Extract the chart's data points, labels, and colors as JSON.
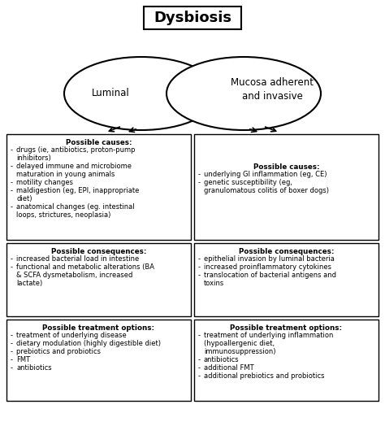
{
  "title": "Dysbiosis",
  "ellipse_left_label": "Luminal",
  "ellipse_right_label": "Mucosa adherent\nand invasive",
  "box_left_causes_title": "Possible causes:",
  "box_left_causes_items": [
    "drugs (ie, antibiotics, proton-pump\n  inhibitors)",
    "delayed immune and microbiome\n  maturation in young animals",
    "motility changes",
    "maldigestion (eg, EPI, inappropriate\n  diet)",
    "anatomical changes (eg. intestinal\n  loops, strictures, neoplasia)"
  ],
  "box_right_causes_title": "Possible causes:",
  "box_right_causes_items": [
    "underlying GI inflammation (eg, CE)",
    "genetic susceptibility (eg,\n  granulomatous colitis of boxer dogs)"
  ],
  "box_left_conseq_title": "Possible consequences:",
  "box_left_conseq_items": [
    "increased bacterial load in intestine",
    "functional and metabolic alterations (BA\n  & SCFA dysmetabolism, increased\n  lactate)"
  ],
  "box_right_conseq_title": "Possible consequences:",
  "box_right_conseq_items": [
    "epithelial invasion by luminal bacteria",
    "increased proinflammatory cytokines",
    "translocation of bacterial antigens and\n  toxins"
  ],
  "box_left_treat_title": "Possible treatment options:",
  "box_left_treat_items": [
    "treatment of underlying disease",
    "dietary modulation (highly digestible diet)",
    "prebiotics and probiotics",
    "FMT",
    "antibiotics"
  ],
  "box_right_treat_title": "Possible treatment options:",
  "box_right_treat_items": [
    "treatment of underlying inflammation\n  (hypoallergenic diet,\n  immunosuppression)",
    "antibiotics",
    "additional FMT",
    "additional prebiotics and probiotics"
  ],
  "bg_color": "#ffffff",
  "box_edge_color": "#000000",
  "text_color": "#000000",
  "ellipse_color": "#000000"
}
